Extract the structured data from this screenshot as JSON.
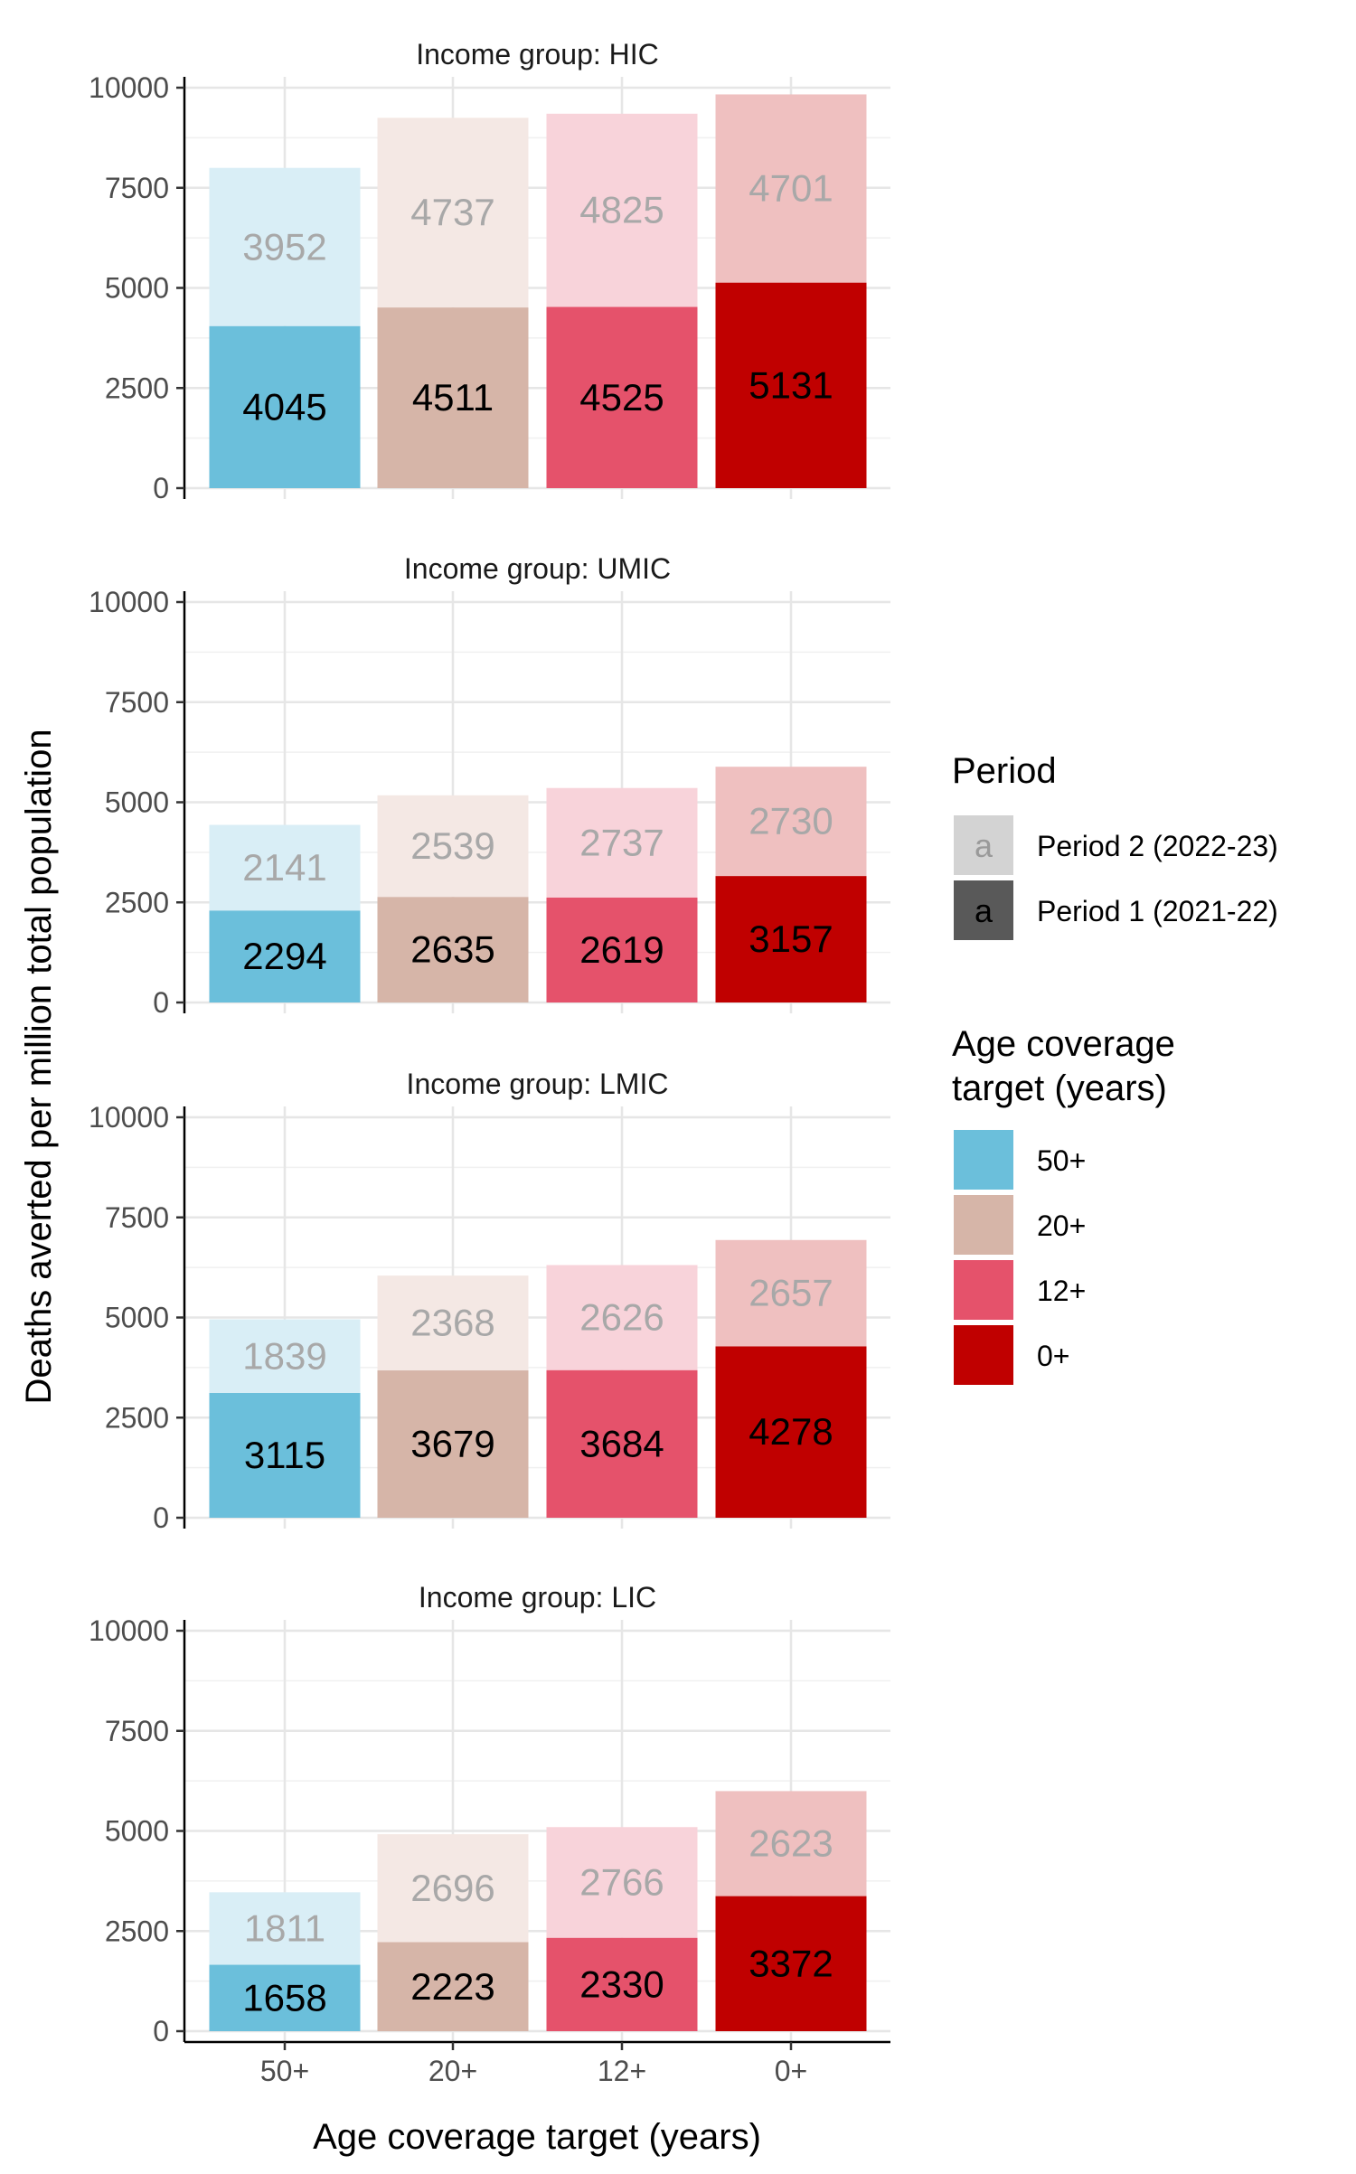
{
  "chart_data": {
    "type": "bar",
    "stacked": true,
    "xlabel": "Age coverage target (years)",
    "ylabel": "Deaths averted per million total population",
    "categories": [
      "50+",
      "20+",
      "12+",
      "0+"
    ],
    "ylim": [
      0,
      10000
    ],
    "yticks": [
      0,
      2500,
      5000,
      7500,
      10000
    ],
    "grid": true,
    "colors": {
      "period1": [
        "#6bbfdb",
        "#d6b5a8",
        "#e5526b",
        "#c00000"
      ],
      "period2": [
        "#d9eef6",
        "#f4e8e4",
        "#f8d3da",
        "#efc0c0"
      ]
    },
    "panels": [
      {
        "title": "Income group: HIC",
        "series": [
          {
            "name": "Period 1 (2021-22)",
            "values": [
              4045,
              4511,
              4525,
              5131
            ]
          },
          {
            "name": "Period 2 (2022-23)",
            "values": [
              3952,
              4737,
              4825,
              4701
            ]
          }
        ]
      },
      {
        "title": "Income group: UMIC",
        "series": [
          {
            "name": "Period 1 (2021-22)",
            "values": [
              2294,
              2635,
              2619,
              3157
            ]
          },
          {
            "name": "Period 2 (2022-23)",
            "values": [
              2141,
              2539,
              2737,
              2730
            ]
          }
        ]
      },
      {
        "title": "Income group: LMIC",
        "series": [
          {
            "name": "Period 1 (2021-22)",
            "values": [
              3115,
              3679,
              3684,
              4278
            ]
          },
          {
            "name": "Period 2 (2022-23)",
            "values": [
              1839,
              2368,
              2626,
              2657
            ]
          }
        ]
      },
      {
        "title": "Income group: LIC",
        "series": [
          {
            "name": "Period 1 (2021-22)",
            "values": [
              1658,
              2223,
              2330,
              3372
            ]
          },
          {
            "name": "Period 2 (2022-23)",
            "values": [
              1811,
              2696,
              2766,
              2623
            ]
          }
        ]
      }
    ],
    "legend": {
      "placement": "right",
      "period_title": "Period",
      "period_glyph": "a",
      "period_items": [
        {
          "label": "Period 2 (2022-23)",
          "color": "#d3d3d3",
          "text_color": "#9a9a9a"
        },
        {
          "label": "Period 1 (2021-22)",
          "color": "#595959",
          "text_color": "#000000"
        }
      ],
      "age_title_lines": [
        "Age coverage",
        "target (years)"
      ],
      "age_items": [
        {
          "label": "50+",
          "color": "#6bbfdb"
        },
        {
          "label": "20+",
          "color": "#d6b5a8"
        },
        {
          "label": "12+",
          "color": "#e5526b"
        },
        {
          "label": "0+",
          "color": "#c00000"
        }
      ]
    }
  }
}
